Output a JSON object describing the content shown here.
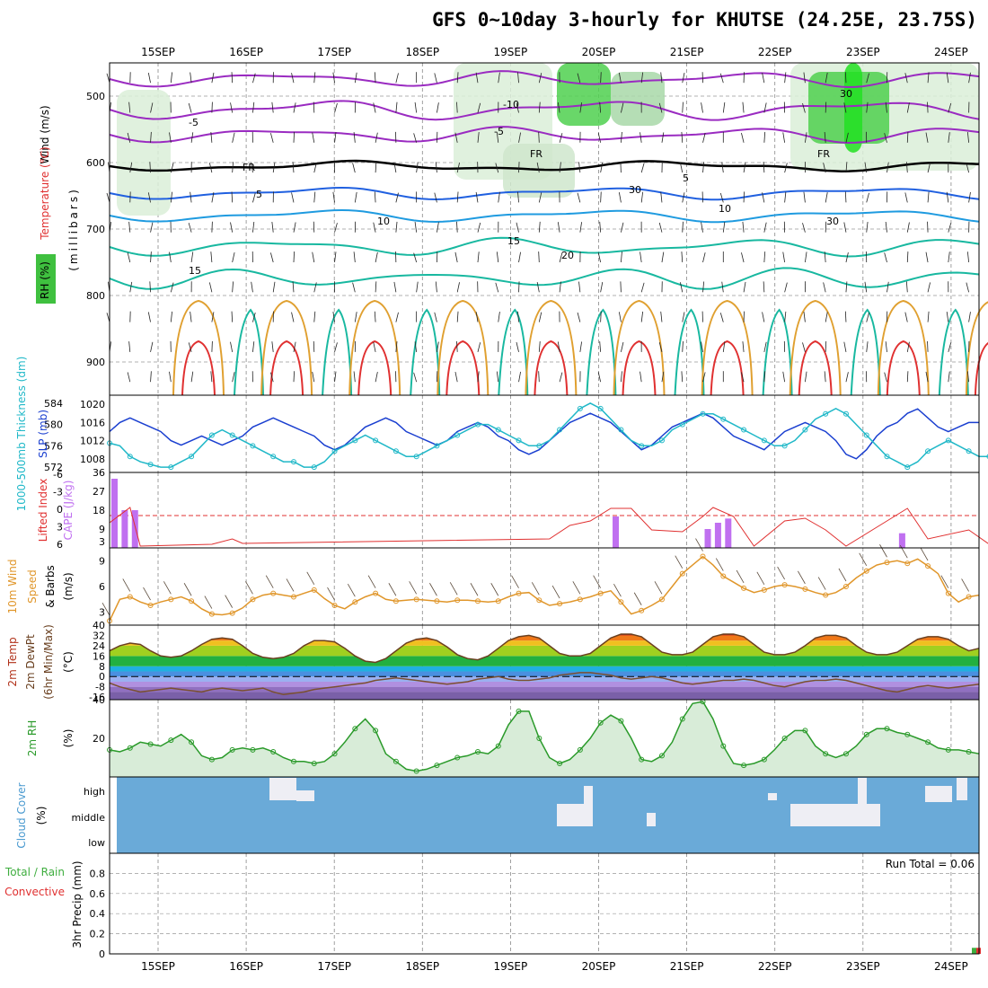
{
  "title": "GFS 0~10day 3-hourly for KHUTSE (24.25E, 23.75S)",
  "colors": {
    "temp_purple": "#9a2bc1",
    "temp_black": "#000000",
    "temp_blue": "#2060e0",
    "temp_lightblue": "#1f9be0",
    "temp_teal": "#18b8a0",
    "temp_orange": "#e0a030",
    "temp_red": "#e03030",
    "rh_green": "#50d050",
    "slp": "#1a3fd0",
    "thickness": "#20b8c8",
    "cape": "#c070f0",
    "li": "#e03030",
    "wind": "#e0962a",
    "rh2m": "#2a9a2a",
    "cloud": "#6aaad8",
    "cloud_text": "#4a9ad0"
  },
  "chart_data": [
    {
      "type": "contour",
      "panel": "upper-air",
      "xlabels": [
        "15SEP",
        "16SEP",
        "17SEP",
        "18SEP",
        "19SEP",
        "20SEP",
        "21SEP",
        "22SEP",
        "23SEP",
        "24SEP"
      ],
      "ylabel": "(millibars)",
      "yticks": [
        "500",
        "600",
        "700",
        "800",
        "900"
      ],
      "legend": [
        "Wind (m/s)",
        "Temperature (°C)",
        "RH (%)"
      ],
      "contour_labels": [
        "-10",
        "-5",
        "-5",
        "FR",
        "FR",
        "FR",
        "5",
        "5",
        "10",
        "10",
        "15",
        "15",
        "20",
        "30",
        "30",
        "30"
      ]
    },
    {
      "type": "line",
      "panel": "pressure",
      "series": [
        {
          "name": "SLP (mb)",
          "axis": "right",
          "ylim": [
            1005,
            1022
          ],
          "yticks": [
            "1008",
            "1012",
            "1016",
            "1020"
          ],
          "values": [
            1014,
            1016,
            1017,
            1016,
            1015,
            1014,
            1012,
            1011,
            1012,
            1013,
            1012,
            1011,
            1012,
            1013,
            1015,
            1016,
            1017,
            1016,
            1015,
            1014,
            1013,
            1011,
            1010,
            1011,
            1013,
            1015,
            1016,
            1017,
            1016,
            1014,
            1013,
            1012,
            1011,
            1012,
            1014,
            1015,
            1016,
            1015,
            1013,
            1012,
            1010,
            1009,
            1010,
            1012,
            1014,
            1016,
            1017,
            1018,
            1017,
            1016,
            1014,
            1012,
            1010,
            1011,
            1013,
            1015,
            1016,
            1017,
            1018,
            1017,
            1015,
            1013,
            1012,
            1011,
            1010,
            1012,
            1014,
            1015,
            1016,
            1015,
            1014,
            1012,
            1009,
            1008,
            1010,
            1013,
            1015,
            1016,
            1018,
            1019,
            1017,
            1015,
            1014,
            1015,
            1016,
            1016
          ]
        },
        {
          "name": "1000-500mb Thickness (dm)",
          "axis": "left",
          "ylim": [
            571,
            585.5
          ],
          "yticks": [
            "572",
            "576",
            "580",
            "584"
          ],
          "values": [
            576.5,
            576,
            574,
            573,
            572.5,
            572,
            572,
            573,
            574,
            576,
            578,
            579,
            578,
            577,
            576,
            575,
            574,
            573,
            573,
            572,
            572,
            573,
            575,
            576,
            577,
            578,
            577,
            576,
            575,
            574,
            574,
            575,
            576,
            577,
            578,
            579,
            580,
            580,
            579,
            578,
            577,
            576,
            576,
            577,
            579,
            581,
            583,
            584,
            583,
            581,
            579,
            577,
            576,
            576,
            577,
            579,
            580,
            581,
            582,
            582,
            581,
            580,
            579,
            578,
            577,
            576,
            576,
            577,
            579,
            581,
            582,
            583,
            582,
            580,
            578,
            576,
            574,
            573,
            572,
            573,
            575,
            576,
            577,
            576,
            575,
            574,
            574
          ]
        }
      ]
    },
    {
      "type": "bar",
      "panel": "stability",
      "series": [
        {
          "name": "CAPE (J/kg)",
          "axis": "left",
          "ylim": [
            0,
            36
          ],
          "yticks": [
            "3",
            "9",
            "18",
            "27",
            "36"
          ],
          "bars": [
            [
              0,
              33
            ],
            [
              1,
              18
            ],
            [
              2,
              18
            ],
            [
              49,
              15
            ],
            [
              58,
              9
            ],
            [
              59,
              12
            ],
            [
              60,
              14
            ],
            [
              77,
              7
            ]
          ]
        },
        {
          "name": "Lifted Index",
          "axis": "right",
          "yticks": [
            "-6",
            "-3",
            "0",
            "3",
            "6"
          ]
        }
      ]
    },
    {
      "type": "line",
      "panel": "wind10m",
      "ylabel": "(m/s)",
      "yticks": [
        "3",
        "6",
        "9"
      ],
      "ylim": [
        1.5,
        10.5
      ],
      "series": [
        {
          "name": "10m Wind Speed & Barbs",
          "values": [
            2,
            4.5,
            4.8,
            4.2,
            3.8,
            4.2,
            4.5,
            4.8,
            4.3,
            3.4,
            2.8,
            2.7,
            2.9,
            3.5,
            4.5,
            5.0,
            5.2,
            5.0,
            4.8,
            5.2,
            5.6,
            4.6,
            3.8,
            3.4,
            4.2,
            4.8,
            5.2,
            4.5,
            4.3,
            4.4,
            4.5,
            4.4,
            4.3,
            4.2,
            4.4,
            4.4,
            4.3,
            4.2,
            4.3,
            4.8,
            5.2,
            5.3,
            4.4,
            3.8,
            4.0,
            4.2,
            4.5,
            4.8,
            5.2,
            5.5,
            4.2,
            2.8,
            3.2,
            3.8,
            4.5,
            6.0,
            7.5,
            8.5,
            9.5,
            8.5,
            7.2,
            6.5,
            5.8,
            5.3,
            5.6,
            6.0,
            6.2,
            6.0,
            5.7,
            5.3,
            5.0,
            5.3,
            6.0,
            7.0,
            7.8,
            8.5,
            8.8,
            9.0,
            8.7,
            9.2,
            8.4,
            7.5,
            5.2,
            4.2,
            4.8,
            5.0
          ]
        }
      ]
    },
    {
      "type": "area",
      "panel": "temperature",
      "ylabel": "(°C)",
      "yticks": [
        "40",
        "32",
        "24",
        "16",
        "8",
        "0",
        "-8",
        "-16"
      ],
      "ylim": [
        -18,
        40
      ],
      "series": [
        {
          "name": "2m Temp",
          "values": [
            20,
            24,
            26,
            25,
            20,
            16,
            15,
            16,
            20,
            25,
            29,
            30,
            29,
            24,
            18,
            15,
            14,
            15,
            18,
            24,
            28,
            28,
            27,
            22,
            16,
            12,
            11,
            14,
            20,
            26,
            29,
            30,
            28,
            23,
            17,
            14,
            13,
            16,
            22,
            28,
            31,
            32,
            30,
            24,
            18,
            16,
            16,
            18,
            24,
            30,
            33,
            33,
            31,
            25,
            19,
            17,
            17,
            19,
            25,
            31,
            33,
            33,
            31,
            25,
            19,
            17,
            17,
            19,
            24,
            30,
            32,
            32,
            30,
            24,
            19,
            17,
            17,
            19,
            24,
            29,
            31,
            31,
            29,
            24,
            20,
            22
          ]
        },
        {
          "name": "2m DewPt",
          "values": [
            -5,
            -8,
            -10,
            -12,
            -11,
            -10,
            -9,
            -10,
            -11,
            -12,
            -10,
            -9,
            -10,
            -11,
            -10,
            -9,
            -12,
            -14,
            -13,
            -12,
            -10,
            -9,
            -8,
            -7,
            -6,
            -5,
            -3,
            -2,
            -1,
            -2,
            -3,
            -4,
            -5,
            -6,
            -5,
            -4,
            -2,
            -1,
            0,
            -2,
            -3,
            -3,
            -2,
            -1,
            1,
            2,
            3,
            3,
            2,
            1,
            -1,
            -2,
            -1,
            0,
            -1,
            -3,
            -5,
            -6,
            -5,
            -4,
            -3,
            -3,
            -2,
            -3,
            -5,
            -7,
            -8,
            -6,
            -4,
            -3,
            -3,
            -2,
            -3,
            -5,
            -7,
            -9,
            -11,
            -12,
            -10,
            -8,
            -7,
            -8,
            -9,
            -8,
            -7,
            -6
          ]
        },
        {
          "name": "2m Max/Min (6hr)",
          "values": []
        }
      ]
    },
    {
      "type": "area",
      "panel": "rh2m",
      "ylabel": "(%)",
      "yticks": [
        "20",
        "40"
      ],
      "ylim": [
        0,
        40
      ],
      "series": [
        {
          "name": "2m RH",
          "values": [
            14,
            13,
            15,
            18,
            17,
            16,
            19,
            22,
            18,
            11,
            9,
            10,
            14,
            15,
            14,
            15,
            13,
            10,
            8,
            8,
            7,
            8,
            12,
            18,
            25,
            30,
            24,
            12,
            8,
            4,
            3,
            4,
            6,
            8,
            10,
            11,
            13,
            12,
            16,
            27,
            34,
            34,
            20,
            10,
            7,
            9,
            14,
            20,
            28,
            32,
            29,
            20,
            9,
            8,
            11,
            18,
            30,
            38,
            39,
            30,
            16,
            7,
            6,
            7,
            9,
            14,
            20,
            24,
            24,
            16,
            12,
            10,
            12,
            16,
            22,
            25,
            25,
            23,
            22,
            20,
            18,
            15,
            14,
            14,
            13,
            12
          ]
        }
      ]
    },
    {
      "type": "heatmap",
      "panel": "cloud",
      "ylabel": "(%)",
      "yticks": [
        "high",
        "middle",
        "low"
      ],
      "series": [
        {
          "name": "Cloud Cover",
          "layers": [
            "high",
            "middle",
            "low"
          ]
        }
      ]
    },
    {
      "type": "bar",
      "panel": "precip",
      "ylabel": "3hr Precip (mm)",
      "yticks": [
        "0",
        "0.2",
        "0.4",
        "0.6",
        "0.8"
      ],
      "ylim": [
        0,
        1.0
      ],
      "legend": [
        "Total / Rain",
        "Convective"
      ],
      "annotation": "Run Total = 0.06",
      "values": [
        [
          85,
          0.06
        ]
      ]
    }
  ],
  "labels": {
    "upper_wind": "Wind (m/s)",
    "upper_temp": "Temperature (°C)",
    "upper_rh": "RH (%)",
    "upper_mb": "(millibars)",
    "thickness": "1000-500mb Thickness (dm)",
    "slp": "SLP (mb)",
    "li": "Lifted Index",
    "cape": "CAPE (J/kg)",
    "wind10_a": "10m Wind",
    "wind10_b": "Speed",
    "wind10_c": "& Barbs",
    "wind10_unit": "(m/s)",
    "temp_a": "2m Temp",
    "temp_b": "2m DewPt",
    "temp_c": "(6hr Min/Max)",
    "temp_unit": "(°C)",
    "rh2m": "2m RH",
    "rh2m_unit": "(%)",
    "cloud": "Cloud Cover",
    "cloud_unit": "(%)",
    "precip": "3hr Precip (mm)",
    "precip_total": "Total / Rain",
    "precip_conv": "Convective",
    "run_total": "Run Total = 0.06"
  }
}
